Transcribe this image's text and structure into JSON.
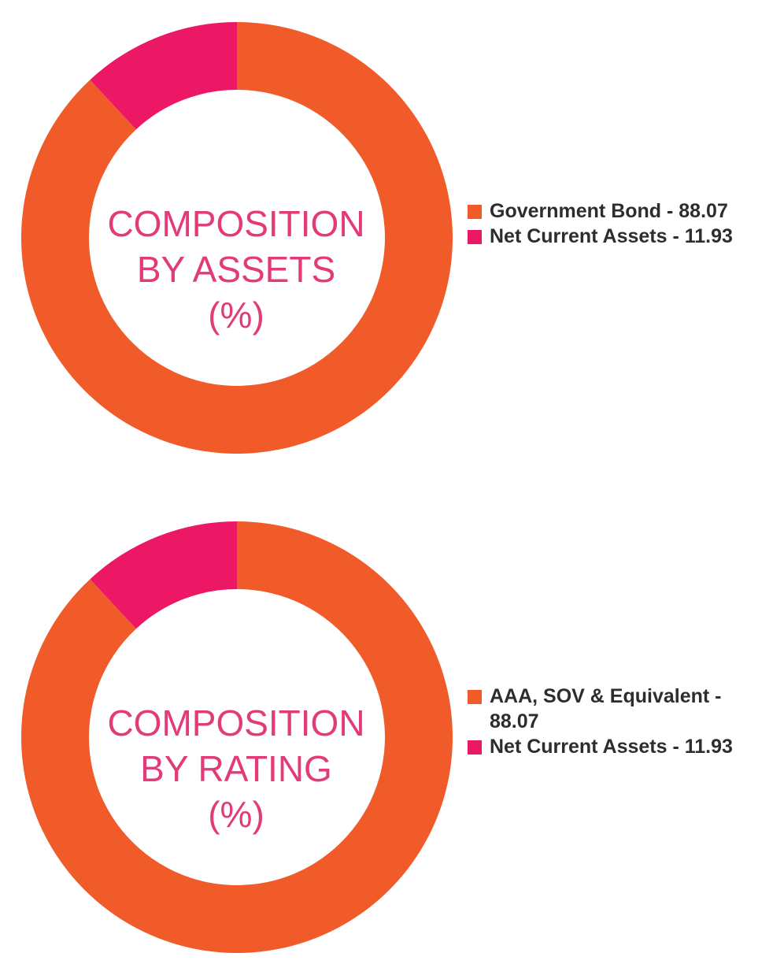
{
  "chart_data": [
    {
      "type": "pie",
      "title_lines": [
        "COMPOSITION",
        "BY ASSETS",
        "(%)"
      ],
      "slices": [
        {
          "label": "Government Bond - 88.07",
          "value": 88.07,
          "color": "#f15a29"
        },
        {
          "label": "Net Current Assets - 11.93",
          "value": 11.93,
          "color": "#ec1866"
        }
      ],
      "legend_position": "right"
    },
    {
      "type": "pie",
      "title_lines": [
        "COMPOSITION",
        "BY RATING",
        "(%)"
      ],
      "slices": [
        {
          "label": "AAA, SOV & Equivalent - 88.07",
          "value": 88.07,
          "color": "#f15a29"
        },
        {
          "label": "Net Current Assets - 11.93",
          "value": 11.93,
          "color": "#ec1866"
        }
      ],
      "legend_position": "right"
    }
  ]
}
